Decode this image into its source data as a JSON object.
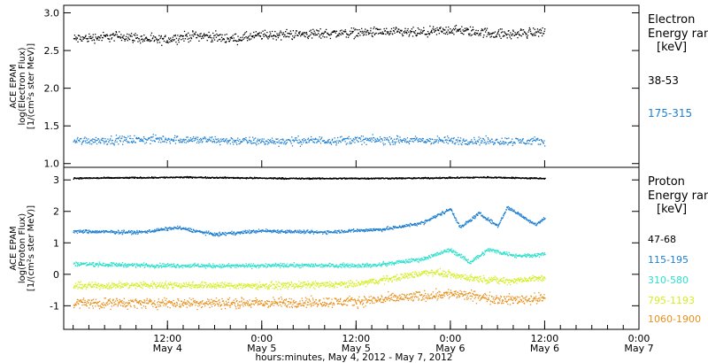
{
  "chart_data": [
    {
      "type": "scatter",
      "panel": "electron",
      "ylabel": [
        "ACE EPAM",
        "log(Electron Flux)",
        "[1/(cm²s ster MeV)]"
      ],
      "legend_title": [
        "Electron",
        "Energy ran",
        "[keV]"
      ],
      "ylim": [
        0.95,
        3.1
      ],
      "yticks": [
        "1.0",
        "1.5",
        "2.0",
        "2.5",
        "3.0"
      ],
      "ytick_values": [
        1.0,
        1.5,
        2.0,
        2.5,
        3.0
      ],
      "grid": false,
      "legend_placement": "right",
      "series": [
        {
          "name": "38-53",
          "color": "#000000",
          "level": 2.7,
          "scatter": 0.06,
          "anchors": [
            [
              3.0,
              2.66
            ],
            [
              3.25,
              2.7
            ],
            [
              3.45,
              2.64
            ],
            [
              3.65,
              2.71
            ],
            [
              3.85,
              2.66
            ],
            [
              4.0,
              2.71
            ],
            [
              4.3,
              2.73
            ],
            [
              4.6,
              2.75
            ],
            [
              4.85,
              2.74
            ],
            [
              5.0,
              2.78
            ],
            [
              5.3,
              2.72
            ],
            [
              5.5,
              2.76
            ]
          ]
        },
        {
          "name": "175-315",
          "color": "#1e7fd1",
          "level": 1.32,
          "scatter": 0.05,
          "anchors": [
            [
              3.0,
              1.31
            ],
            [
              3.5,
              1.33
            ],
            [
              4.0,
              1.3
            ],
            [
              4.5,
              1.32
            ],
            [
              5.0,
              1.31
            ],
            [
              5.5,
              1.3
            ]
          ]
        }
      ]
    },
    {
      "type": "scatter",
      "panel": "proton",
      "ylabel": [
        "ACE EPAM",
        "log(Proton Flux)",
        "[1/(cm²s ster MeV)]"
      ],
      "legend_title": [
        "Proton",
        "Energy ran",
        "[keV]"
      ],
      "ylim": [
        -1.75,
        3.4
      ],
      "yticks": [
        "-1",
        "0",
        "1",
        "2",
        "3"
      ],
      "ytick_values": [
        -1,
        0,
        1,
        2,
        3
      ],
      "grid": false,
      "legend_placement": "right",
      "series": [
        {
          "name": "47-68",
          "color": "#000000",
          "scatter": 0.02,
          "anchors": [
            [
              3.0,
              3.07
            ],
            [
              3.6,
              3.1
            ],
            [
              4.2,
              3.06
            ],
            [
              4.8,
              3.07
            ],
            [
              5.2,
              3.1
            ],
            [
              5.5,
              3.06
            ]
          ]
        },
        {
          "name": "115-195",
          "color": "#1e7fd1",
          "scatter": 0.05,
          "anchors": [
            [
              3.0,
              1.38
            ],
            [
              3.35,
              1.35
            ],
            [
              3.55,
              1.5
            ],
            [
              3.75,
              1.28
            ],
            [
              4.0,
              1.4
            ],
            [
              4.3,
              1.35
            ],
            [
              4.65,
              1.45
            ],
            [
              4.85,
              1.65
            ],
            [
              5.0,
              2.1
            ],
            [
              5.05,
              1.5
            ],
            [
              5.15,
              1.95
            ],
            [
              5.25,
              1.55
            ],
            [
              5.3,
              2.15
            ],
            [
              5.45,
              1.6
            ],
            [
              5.5,
              1.8
            ]
          ]
        },
        {
          "name": "310-580",
          "color": "#2ee0cc",
          "scatter": 0.06,
          "anchors": [
            [
              3.0,
              0.35
            ],
            [
              3.4,
              0.3
            ],
            [
              3.8,
              0.28
            ],
            [
              4.2,
              0.3
            ],
            [
              4.6,
              0.3
            ],
            [
              4.85,
              0.5
            ],
            [
              5.0,
              0.8
            ],
            [
              5.1,
              0.4
            ],
            [
              5.2,
              0.8
            ],
            [
              5.35,
              0.6
            ],
            [
              5.5,
              0.65
            ]
          ]
        },
        {
          "name": "795-1193",
          "color": "#d4ee22",
          "scatter": 0.1,
          "anchors": [
            [
              3.0,
              -0.35
            ],
            [
              3.5,
              -0.32
            ],
            [
              4.0,
              -0.35
            ],
            [
              4.5,
              -0.3
            ],
            [
              4.7,
              -0.1
            ],
            [
              4.9,
              0.1
            ],
            [
              5.1,
              -0.1
            ],
            [
              5.3,
              -0.2
            ],
            [
              5.5,
              -0.1
            ]
          ]
        },
        {
          "name": "1060-1900",
          "color": "#e8901c",
          "scatter": 0.15,
          "anchors": [
            [
              3.0,
              -0.9
            ],
            [
              3.5,
              -0.9
            ],
            [
              4.0,
              -0.9
            ],
            [
              4.5,
              -0.85
            ],
            [
              4.8,
              -0.7
            ],
            [
              5.0,
              -0.6
            ],
            [
              5.3,
              -0.8
            ],
            [
              5.5,
              -0.75
            ]
          ]
        }
      ]
    }
  ],
  "x_axis": {
    "xlim": [
      2.95,
      6.0
    ],
    "ticks": [
      {
        "value": 3.5,
        "time": "12:00",
        "date": "May 4"
      },
      {
        "value": 4.0,
        "time": "0:00",
        "date": "May 5"
      },
      {
        "value": 4.5,
        "time": "12:00",
        "date": "May 5"
      },
      {
        "value": 5.0,
        "time": "0:00",
        "date": "May 6"
      },
      {
        "value": 5.5,
        "time": "12:00",
        "date": "May 6"
      },
      {
        "value": 6.0,
        "time": "0:00",
        "date": "May 7"
      }
    ],
    "label": "hours:minutes, May  4, 2012 - May  7, 2012"
  }
}
